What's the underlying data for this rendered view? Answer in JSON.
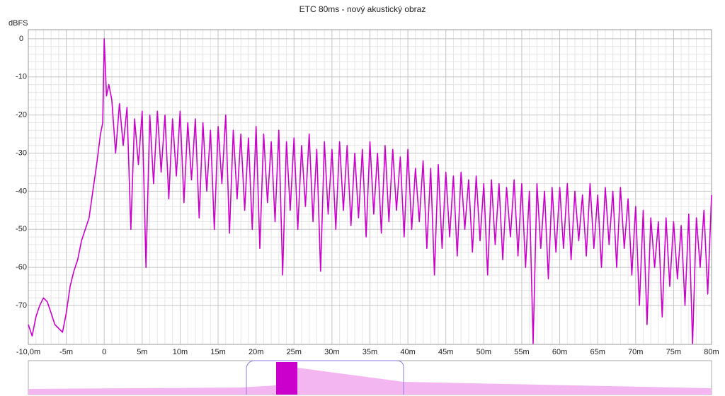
{
  "chart_data": {
    "type": "line",
    "title": "ETC 80ms - nový akustický obraz",
    "y_label": "dBFS",
    "xlim": [
      -10,
      80
    ],
    "ylim": [
      -80.2,
      2.4
    ],
    "grid": true,
    "xticks": [
      {
        "value": -10,
        "label": "-10,0m"
      },
      {
        "value": -5,
        "label": "-5m"
      },
      0,
      {
        "value": 5,
        "label": "5m"
      },
      {
        "value": 10,
        "label": "10m"
      },
      {
        "value": 15,
        "label": "15m"
      },
      {
        "value": 20,
        "label": "20m"
      },
      {
        "value": 25,
        "label": "25m"
      },
      {
        "value": 30,
        "label": "30m"
      },
      {
        "value": 35,
        "label": "35m"
      },
      {
        "value": 40,
        "label": "40m"
      },
      {
        "value": 45,
        "label": "45m"
      },
      {
        "value": 50,
        "label": "50m"
      },
      {
        "value": 55,
        "label": "55m"
      },
      {
        "value": 60,
        "label": "60m"
      },
      {
        "value": 65,
        "label": "65m"
      },
      {
        "value": 70,
        "label": "70m"
      },
      {
        "value": 75,
        "label": "75m"
      },
      {
        "value": 80,
        "label": "80m"
      }
    ],
    "yticks": [
      0,
      -10,
      -20,
      -30,
      -40,
      -50,
      -60,
      -70
    ],
    "series": [
      {
        "color": "#cc00cc",
        "x": [
          -10,
          -9.5,
          -9,
          -8.5,
          -8,
          -7.5,
          -7,
          -6.5,
          -5.5,
          -5,
          -4.5,
          -4,
          -3.5,
          -3,
          -2,
          -1.5,
          -1,
          -0.5,
          -0.2,
          0,
          0.3,
          0.6,
          1,
          1.5,
          2,
          2.5,
          3,
          3.5,
          4,
          4.5,
          5,
          5.5,
          6,
          6.5,
          7,
          7.5,
          8,
          8.5,
          9,
          9.5,
          10,
          10.5,
          11,
          11.5,
          12,
          12.5,
          13,
          13.5,
          14,
          14.5,
          15,
          15.5,
          16,
          16.5,
          17,
          17.5,
          18,
          18.5,
          19,
          19.5,
          20,
          20.5,
          21,
          21.5,
          22,
          22.5,
          23,
          23.5,
          24,
          24.5,
          25,
          25.5,
          26,
          26.5,
          27,
          27.5,
          28,
          28.5,
          29,
          29.5,
          30,
          30.5,
          31,
          31.5,
          32,
          32.5,
          33,
          33.5,
          34,
          34.5,
          35,
          35.5,
          36,
          36.5,
          37,
          37.5,
          38,
          38.5,
          39,
          39.5,
          40,
          40.5,
          41,
          41.5,
          42,
          42.5,
          43,
          43.5,
          44,
          44.5,
          45,
          45.5,
          46,
          46.5,
          47,
          47.5,
          48,
          48.5,
          49,
          49.5,
          50,
          50.5,
          51,
          51.5,
          52,
          52.5,
          53,
          53.5,
          54,
          54.5,
          55,
          55.5,
          56,
          56.5,
          57,
          57.5,
          58,
          58.5,
          59,
          59.5,
          60,
          60.5,
          61,
          61.5,
          62,
          62.5,
          63,
          63.5,
          64,
          64.5,
          65,
          65.5,
          66,
          66.5,
          67,
          67.5,
          68,
          68.5,
          69,
          69.5,
          70,
          70.5,
          71,
          71.5,
          72,
          72.5,
          73,
          73.5,
          74,
          74.5,
          75,
          75.5,
          76,
          76.5,
          77,
          77.5,
          78,
          78.5,
          79,
          79.5,
          80
        ],
        "values": [
          -75,
          -78,
          -73,
          -70,
          -68,
          -69,
          -72,
          -75,
          -77,
          -72,
          -65,
          -61,
          -58,
          -53,
          -47,
          -40,
          -33,
          -25,
          -22,
          0,
          -15,
          -12,
          -16,
          -30,
          -17,
          -28,
          -18,
          -50,
          -21,
          -33,
          -19,
          -60,
          -20,
          -38,
          -19,
          -35,
          -20,
          -42,
          -21,
          -36,
          -19,
          -43,
          -22,
          -37,
          -21,
          -47,
          -22,
          -40,
          -24,
          -50,
          -23,
          -38,
          -20,
          -51,
          -24,
          -42,
          -25,
          -45,
          -26,
          -50,
          -23,
          -55,
          -25,
          -43,
          -27,
          -48,
          -24,
          -62,
          -27,
          -45,
          -26,
          -50,
          -28,
          -44,
          -25,
          -48,
          -29,
          -61,
          -27,
          -46,
          -29,
          -50,
          -27,
          -45,
          -28,
          -49,
          -30,
          -47,
          -29,
          -52,
          -27,
          -46,
          -30,
          -51,
          -28,
          -48,
          -29,
          -45,
          -31,
          -52,
          -29,
          -50,
          -34,
          -48,
          -32,
          -55,
          -34,
          -62,
          -33,
          -55,
          -35,
          -52,
          -36,
          -57,
          -35,
          -50,
          -37,
          -56,
          -36,
          -53,
          -38,
          -62,
          -37,
          -54,
          -38,
          -58,
          -39,
          -52,
          -37,
          -57,
          -38,
          -60,
          -40,
          -80,
          -38,
          -55,
          -40,
          -63,
          -39,
          -56,
          -39,
          -55,
          -38,
          -58,
          -40,
          -53,
          -41,
          -57,
          -38,
          -55,
          -41,
          -60,
          -39,
          -54,
          -40,
          -60,
          -39,
          -55,
          -42,
          -62,
          -44,
          -70,
          -45,
          -75,
          -47,
          -60,
          -48,
          -73,
          -47,
          -65,
          -48,
          -63,
          -49,
          -70,
          -46,
          -80,
          -47,
          -60,
          -45,
          -67,
          -41
        ]
      }
    ]
  }
}
